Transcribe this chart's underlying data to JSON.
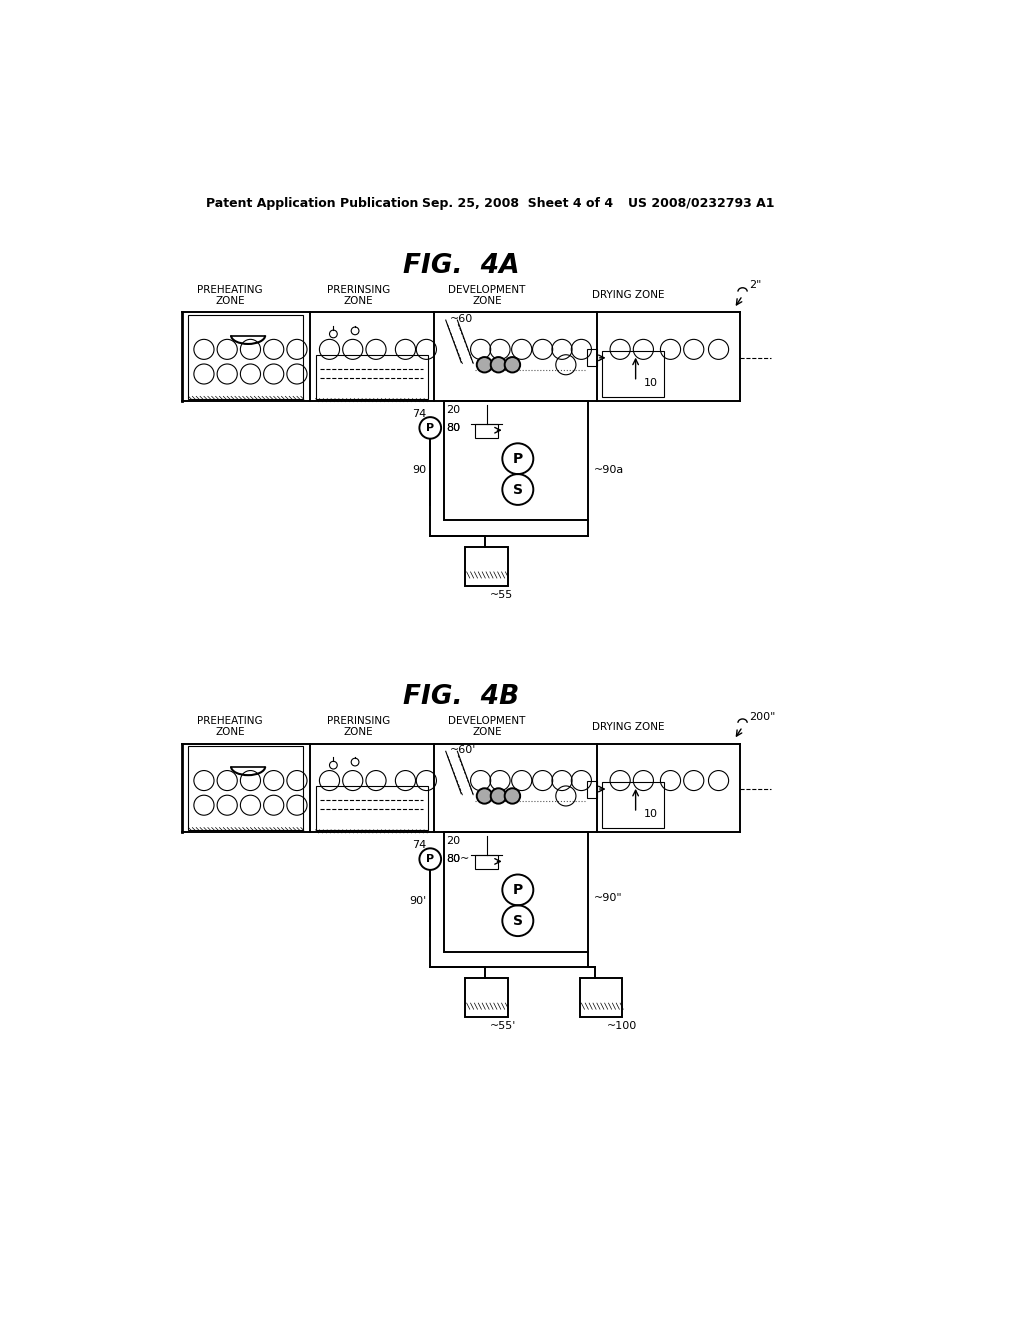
{
  "bg_color": "#ffffff",
  "header_left": "Patent Application Publication",
  "header_mid": "Sep. 25, 2008  Sheet 4 of 4",
  "header_right": "US 2008/0232793 A1",
  "fig4a_title": "FIG.  4A",
  "fig4b_title": "FIG.  4B",
  "lw_main": 1.4,
  "lw_thin": 0.8,
  "lw_thick": 2.0
}
